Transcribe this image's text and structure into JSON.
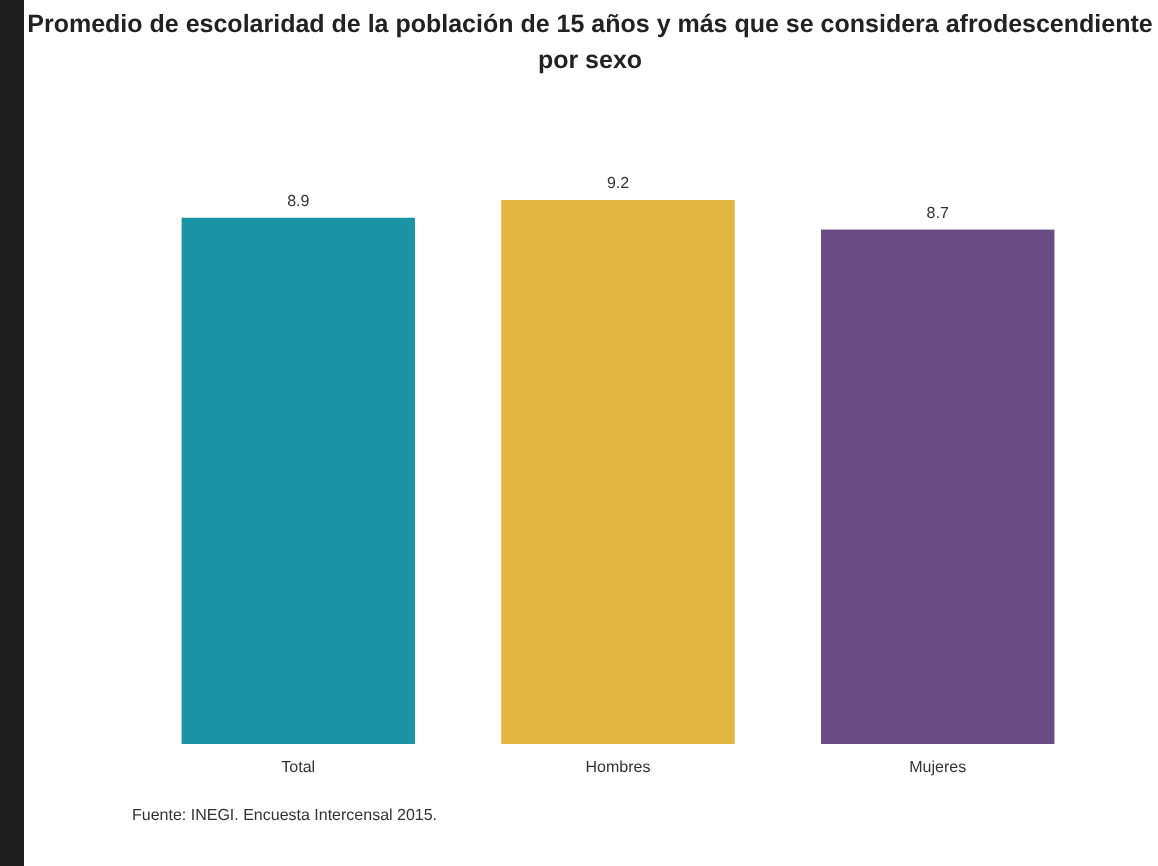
{
  "chart_data": {
    "type": "bar",
    "title": "Promedio de escolaridad de la población de 15 años y más que se considera afrodescendiente\npor sexo",
    "categories": [
      "Total",
      "Hombres",
      "Mujeres"
    ],
    "values": [
      8.9,
      9.2,
      8.7
    ],
    "colors": [
      "#1a94a6",
      "#e2b53e",
      "#6a4c84"
    ],
    "tick_labels": "x",
    "data_labels": true,
    "annotations": [
      "Fuente: INEGI. Encuesta Intercensal 2015."
    ]
  }
}
